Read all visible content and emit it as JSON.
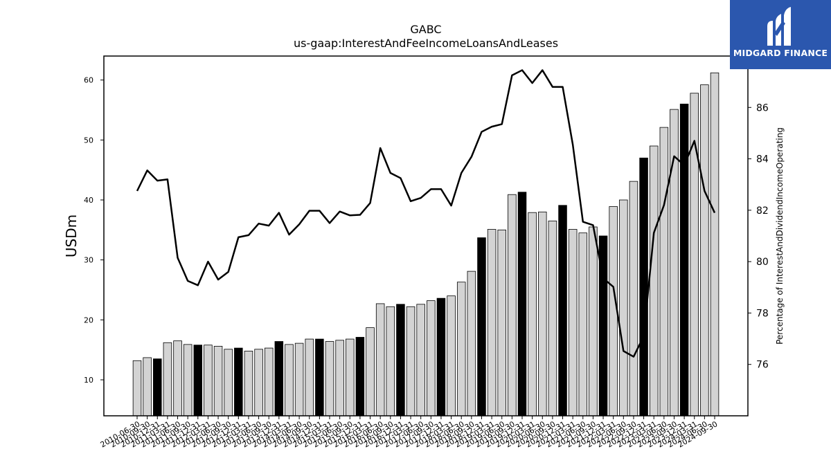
{
  "chart_data": {
    "type": "bar",
    "title": "GABC",
    "subtitle": "us-gaap:InterestAndFeeIncomeLoansAndLeases",
    "ylabel": "USDm",
    "y2label": "Percentage of InterestAndDividendIncomeOperating",
    "ylim": [
      4,
      64
    ],
    "y2lim": [
      74.0,
      88.0
    ],
    "yticks": [
      10,
      20,
      30,
      40,
      50,
      60
    ],
    "y2ticks": [
      76,
      78,
      80,
      82,
      84,
      86
    ],
    "categories": [
      "2010-06-30",
      "2010-09-30",
      "2010-12-31",
      "2011-03-31",
      "2011-06-30",
      "2011-09-30",
      "2011-12-31",
      "2012-03-31",
      "2012-06-30",
      "2012-09-30",
      "2012-12-31",
      "2013-03-31",
      "2013-06-30",
      "2013-09-30",
      "2013-12-31",
      "2014-03-31",
      "2014-06-30",
      "2014-09-30",
      "2014-12-31",
      "2015-03-31",
      "2015-06-30",
      "2015-09-30",
      "2015-12-31",
      "2016-03-31",
      "2016-06-30",
      "2016-09-30",
      "2016-12-31",
      "2017-03-31",
      "2017-06-30",
      "2017-09-30",
      "2017-12-31",
      "2018-03-31",
      "2018-06-30",
      "2018-09-30",
      "2018-12-31",
      "2019-03-31",
      "2019-06-30",
      "2019-09-30",
      "2019-12-31",
      "2020-03-31",
      "2020-06-30",
      "2020-09-30",
      "2020-12-31",
      "2021-03-31",
      "2021-06-30",
      "2021-09-30",
      "2021-12-31",
      "2022-03-31",
      "2022-06-30",
      "2022-09-30",
      "2022-12-31",
      "2023-03-31",
      "2023-06-30",
      "2023-09-30",
      "2023-12-31",
      "2024-03-31",
      "2024-06-30",
      "2024-09-30"
    ],
    "series": [
      {
        "kind": "bar",
        "axis": "left",
        "values": [
          13.2,
          13.7,
          13.5,
          16.2,
          16.5,
          15.9,
          15.8,
          15.8,
          15.6,
          15.1,
          15.3,
          14.8,
          15.1,
          15.3,
          16.4,
          15.9,
          16.1,
          16.8,
          16.8,
          16.4,
          16.6,
          16.8,
          17.1,
          18.7,
          22.7,
          22.2,
          22.6,
          22.2,
          22.6,
          23.2,
          23.6,
          24.0,
          26.3,
          28.1,
          33.7,
          35.1,
          35.0,
          40.9,
          41.3,
          37.9,
          38.0,
          36.5,
          39.1,
          35.1,
          34.5,
          35.5,
          34.0,
          38.9,
          40.0,
          43.1,
          47.0,
          49.0,
          52.1,
          55.1,
          56.0,
          57.8,
          59.2,
          61.2
        ],
        "highlight": [
          false,
          false,
          true,
          false,
          false,
          false,
          true,
          false,
          false,
          false,
          true,
          false,
          false,
          false,
          true,
          false,
          false,
          false,
          true,
          false,
          false,
          false,
          true,
          false,
          false,
          false,
          true,
          false,
          false,
          false,
          true,
          false,
          false,
          false,
          true,
          false,
          false,
          false,
          true,
          false,
          false,
          false,
          true,
          false,
          false,
          false,
          true,
          false,
          false,
          false,
          true,
          false,
          false,
          false,
          true,
          false,
          false,
          false
        ]
      },
      {
        "kind": "line",
        "axis": "right",
        "values": [
          82.75,
          83.55,
          83.15,
          83.2,
          80.15,
          79.25,
          79.08,
          80.0,
          79.3,
          79.6,
          80.95,
          81.03,
          81.48,
          81.4,
          81.9,
          81.05,
          81.45,
          81.98,
          81.98,
          81.5,
          81.95,
          81.8,
          81.82,
          82.28,
          84.42,
          83.45,
          83.25,
          82.35,
          82.48,
          82.82,
          82.82,
          82.18,
          83.45,
          84.08,
          85.05,
          85.25,
          85.35,
          87.25,
          87.45,
          86.95,
          87.45,
          86.8,
          86.8,
          84.55,
          81.55,
          81.42,
          79.35,
          79.02,
          76.52,
          76.3,
          77.1,
          81.12,
          82.2,
          84.1,
          83.75,
          84.7,
          82.75,
          81.9
        ],
        "color": "#000000"
      }
    ],
    "colors": {
      "bar_normal": "#d3d3d3",
      "bar_highlight": "#000000",
      "bar_edge": "#000000",
      "line": "#000000"
    },
    "grid": false,
    "legend": "none"
  },
  "logo": {
    "text": "MIDGARD FINANCE",
    "background": "#2b57ae",
    "mark": "stylized-m-logo"
  }
}
